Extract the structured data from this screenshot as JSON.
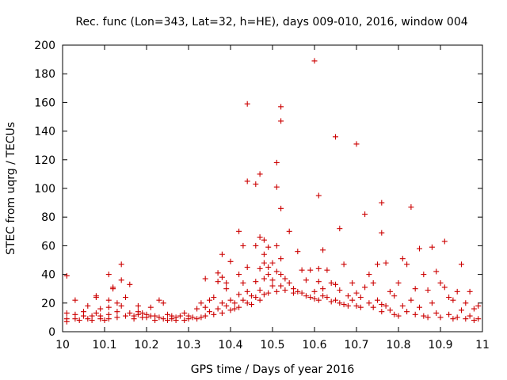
{
  "chart_data": {
    "type": "scatter",
    "title": "Rec. func (Lon=343, Lat=32, h=HE), days 009-010, 2016, window 004",
    "xlabel": "GPS time / Days of year 2016",
    "ylabel": "STEC from uqrg / TECUs",
    "xlim": [
      10,
      11
    ],
    "ylim": [
      0,
      200
    ],
    "xticks": [
      "10",
      "10.1",
      "10.2",
      "10.3",
      "10.4",
      "10.5",
      "10.6",
      "10.7",
      "10.8",
      "10.9",
      "11"
    ],
    "yticks": [
      "0",
      "20",
      "40",
      "60",
      "80",
      "100",
      "120",
      "140",
      "160",
      "180",
      "200"
    ],
    "marker": "+",
    "marker_color": "#cc0000",
    "series": [
      {
        "name": "STEC",
        "points": [
          [
            10.01,
            39
          ],
          [
            10.01,
            13
          ],
          [
            10.01,
            9
          ],
          [
            10.01,
            7
          ],
          [
            10.03,
            22
          ],
          [
            10.03,
            12
          ],
          [
            10.03,
            9
          ],
          [
            10.04,
            8
          ],
          [
            10.05,
            11
          ],
          [
            10.05,
            14
          ],
          [
            10.06,
            18
          ],
          [
            10.06,
            9
          ],
          [
            10.07,
            11
          ],
          [
            10.07,
            8
          ],
          [
            10.08,
            25
          ],
          [
            10.08,
            24
          ],
          [
            10.08,
            13
          ],
          [
            10.09,
            16
          ],
          [
            10.09,
            11
          ],
          [
            10.09,
            9
          ],
          [
            10.1,
            8
          ],
          [
            10.11,
            40
          ],
          [
            10.11,
            22
          ],
          [
            10.11,
            17
          ],
          [
            10.11,
            12
          ],
          [
            10.11,
            9
          ],
          [
            10.12,
            31
          ],
          [
            10.12,
            30
          ],
          [
            10.13,
            20
          ],
          [
            10.13,
            14
          ],
          [
            10.13,
            10
          ],
          [
            10.14,
            47
          ],
          [
            10.14,
            36
          ],
          [
            10.14,
            18
          ],
          [
            10.15,
            24
          ],
          [
            10.15,
            11
          ],
          [
            10.16,
            33
          ],
          [
            10.16,
            13
          ],
          [
            10.17,
            9
          ],
          [
            10.17,
            11
          ],
          [
            10.18,
            18
          ],
          [
            10.18,
            14
          ],
          [
            10.18,
            12
          ],
          [
            10.19,
            13
          ],
          [
            10.19,
            10
          ],
          [
            10.2,
            10
          ],
          [
            10.2,
            12
          ],
          [
            10.21,
            17
          ],
          [
            10.21,
            11
          ],
          [
            10.22,
            8
          ],
          [
            10.22,
            11
          ],
          [
            10.23,
            22
          ],
          [
            10.23,
            10
          ],
          [
            10.24,
            9
          ],
          [
            10.24,
            20
          ],
          [
            10.25,
            12
          ],
          [
            10.25,
            8
          ],
          [
            10.26,
            11
          ],
          [
            10.26,
            9
          ],
          [
            10.27,
            10
          ],
          [
            10.27,
            8
          ],
          [
            10.28,
            11
          ],
          [
            10.29,
            13
          ],
          [
            10.29,
            8
          ],
          [
            10.3,
            9
          ],
          [
            10.3,
            11
          ],
          [
            10.31,
            10
          ],
          [
            10.32,
            9
          ],
          [
            10.32,
            16
          ],
          [
            10.33,
            20
          ],
          [
            10.33,
            10
          ],
          [
            10.34,
            37
          ],
          [
            10.34,
            17
          ],
          [
            10.34,
            11
          ],
          [
            10.35,
            14
          ],
          [
            10.35,
            22
          ],
          [
            10.36,
            12
          ],
          [
            10.36,
            24
          ],
          [
            10.37,
            41
          ],
          [
            10.37,
            35
          ],
          [
            10.37,
            16
          ],
          [
            10.38,
            54
          ],
          [
            10.38,
            38
          ],
          [
            10.38,
            20
          ],
          [
            10.38,
            13
          ],
          [
            10.39,
            34
          ],
          [
            10.39,
            30
          ],
          [
            10.39,
            18
          ],
          [
            10.4,
            49
          ],
          [
            10.4,
            22
          ],
          [
            10.4,
            15
          ],
          [
            10.41,
            20
          ],
          [
            10.41,
            16
          ],
          [
            10.42,
            70
          ],
          [
            10.42,
            40
          ],
          [
            10.42,
            26
          ],
          [
            10.42,
            17
          ],
          [
            10.43,
            60
          ],
          [
            10.43,
            34
          ],
          [
            10.43,
            22
          ],
          [
            10.44,
            159
          ],
          [
            10.44,
            105
          ],
          [
            10.44,
            45
          ],
          [
            10.44,
            28
          ],
          [
            10.44,
            20
          ],
          [
            10.45,
            25
          ],
          [
            10.45,
            19
          ],
          [
            10.46,
            103
          ],
          [
            10.46,
            60
          ],
          [
            10.46,
            35
          ],
          [
            10.46,
            24
          ],
          [
            10.47,
            110
          ],
          [
            10.47,
            66
          ],
          [
            10.47,
            44
          ],
          [
            10.47,
            29
          ],
          [
            10.47,
            22
          ],
          [
            10.48,
            64
          ],
          [
            10.48,
            54
          ],
          [
            10.48,
            48
          ],
          [
            10.48,
            37
          ],
          [
            10.48,
            26
          ],
          [
            10.49,
            59
          ],
          [
            10.49,
            45
          ],
          [
            10.49,
            40
          ],
          [
            10.49,
            27
          ],
          [
            10.5,
            48
          ],
          [
            10.5,
            36
          ],
          [
            10.5,
            32
          ],
          [
            10.51,
            118
          ],
          [
            10.51,
            101
          ],
          [
            10.51,
            60
          ],
          [
            10.51,
            42
          ],
          [
            10.51,
            28
          ],
          [
            10.52,
            157
          ],
          [
            10.52,
            147
          ],
          [
            10.52,
            86
          ],
          [
            10.52,
            51
          ],
          [
            10.52,
            40
          ],
          [
            10.52,
            32
          ],
          [
            10.53,
            37
          ],
          [
            10.53,
            29
          ],
          [
            10.54,
            70
          ],
          [
            10.54,
            34
          ],
          [
            10.55,
            30
          ],
          [
            10.55,
            27
          ],
          [
            10.56,
            56
          ],
          [
            10.56,
            28
          ],
          [
            10.57,
            43
          ],
          [
            10.57,
            27
          ],
          [
            10.58,
            36
          ],
          [
            10.58,
            25
          ],
          [
            10.59,
            43
          ],
          [
            10.59,
            24
          ],
          [
            10.6,
            189
          ],
          [
            10.6,
            23
          ],
          [
            10.6,
            28
          ],
          [
            10.61,
            95
          ],
          [
            10.61,
            44
          ],
          [
            10.61,
            35
          ],
          [
            10.61,
            22
          ],
          [
            10.62,
            57
          ],
          [
            10.62,
            30
          ],
          [
            10.62,
            25
          ],
          [
            10.63,
            43
          ],
          [
            10.63,
            24
          ],
          [
            10.64,
            34
          ],
          [
            10.64,
            21
          ],
          [
            10.65,
            136
          ],
          [
            10.65,
            33
          ],
          [
            10.65,
            22
          ],
          [
            10.66,
            72
          ],
          [
            10.66,
            29
          ],
          [
            10.66,
            20
          ],
          [
            10.67,
            47
          ],
          [
            10.67,
            19
          ],
          [
            10.68,
            25
          ],
          [
            10.68,
            18
          ],
          [
            10.69,
            34
          ],
          [
            10.69,
            22
          ],
          [
            10.7,
            131
          ],
          [
            10.7,
            27
          ],
          [
            10.7,
            18
          ],
          [
            10.71,
            24
          ],
          [
            10.71,
            17
          ],
          [
            10.72,
            82
          ],
          [
            10.72,
            31
          ],
          [
            10.73,
            40
          ],
          [
            10.73,
            20
          ],
          [
            10.74,
            34
          ],
          [
            10.74,
            17
          ],
          [
            10.75,
            47
          ],
          [
            10.75,
            22
          ],
          [
            10.76,
            90
          ],
          [
            10.76,
            69
          ],
          [
            10.76,
            19
          ],
          [
            10.76,
            14
          ],
          [
            10.77,
            48
          ],
          [
            10.77,
            18
          ],
          [
            10.78,
            28
          ],
          [
            10.78,
            15
          ],
          [
            10.79,
            25
          ],
          [
            10.79,
            12
          ],
          [
            10.8,
            34
          ],
          [
            10.8,
            11
          ],
          [
            10.81,
            51
          ],
          [
            10.81,
            18
          ],
          [
            10.82,
            47
          ],
          [
            10.82,
            14
          ],
          [
            10.83,
            87
          ],
          [
            10.83,
            22
          ],
          [
            10.84,
            30
          ],
          [
            10.84,
            12
          ],
          [
            10.85,
            58
          ],
          [
            10.85,
            17
          ],
          [
            10.86,
            40
          ],
          [
            10.86,
            11
          ],
          [
            10.87,
            29
          ],
          [
            10.87,
            10
          ],
          [
            10.88,
            59
          ],
          [
            10.88,
            20
          ],
          [
            10.89,
            42
          ],
          [
            10.89,
            13
          ],
          [
            10.9,
            34
          ],
          [
            10.9,
            10
          ],
          [
            10.91,
            63
          ],
          [
            10.91,
            31
          ],
          [
            10.92,
            24
          ],
          [
            10.92,
            12
          ],
          [
            10.93,
            22
          ],
          [
            10.93,
            9
          ],
          [
            10.94,
            28
          ],
          [
            10.94,
            10
          ],
          [
            10.95,
            47
          ],
          [
            10.95,
            15
          ],
          [
            10.96,
            20
          ],
          [
            10.96,
            9
          ],
          [
            10.97,
            28
          ],
          [
            10.97,
            11
          ],
          [
            10.98,
            16
          ],
          [
            10.98,
            8
          ],
          [
            10.99,
            18
          ],
          [
            10.99,
            9
          ]
        ]
      }
    ]
  }
}
